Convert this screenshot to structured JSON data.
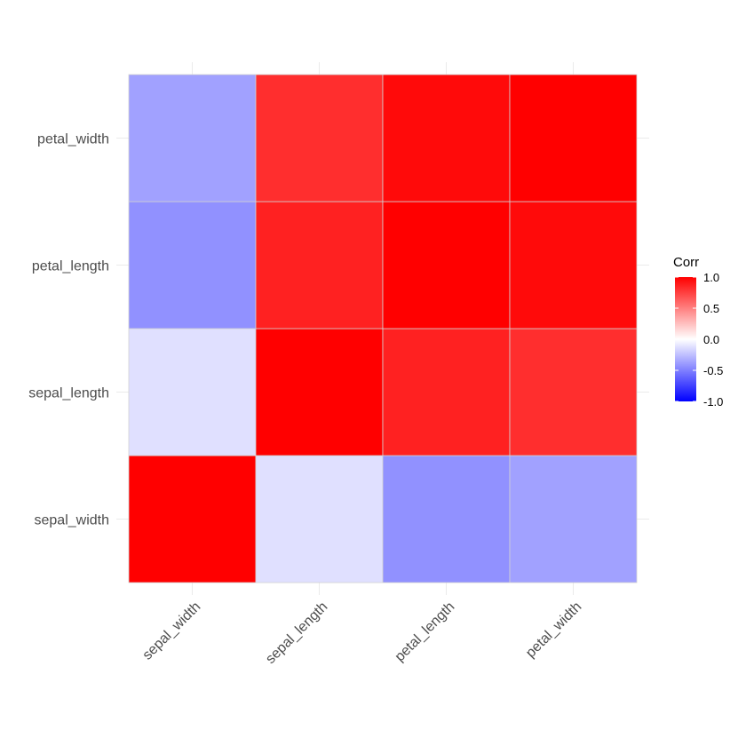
{
  "chart_data": {
    "type": "heatmap",
    "title": "",
    "xlabel": "",
    "ylabel": "",
    "x_categories": [
      "sepal_width",
      "sepal_length",
      "petal_length",
      "petal_width"
    ],
    "y_categories": [
      "sepal_width",
      "sepal_length",
      "petal_length",
      "petal_width"
    ],
    "values": [
      [
        1.0,
        -0.12,
        -0.43,
        -0.37
      ],
      [
        -0.12,
        1.0,
        0.87,
        0.82
      ],
      [
        -0.43,
        0.87,
        1.0,
        0.96
      ],
      [
        -0.37,
        0.82,
        0.96,
        1.0
      ]
    ],
    "legend": {
      "title": "Corr",
      "ticks": [
        1.0,
        0.5,
        0.0,
        -0.5,
        -1.0
      ],
      "tick_labels": [
        "1.0",
        "0.5",
        "0.0",
        "-0.5",
        "-1.0"
      ],
      "position": "right"
    },
    "color_scale": {
      "low": "#0000ff",
      "mid": "#ffffff",
      "high": "#ff0000",
      "limits": [
        -1,
        1
      ]
    },
    "tile_border_color": "#d3d3d3",
    "grid": true
  }
}
